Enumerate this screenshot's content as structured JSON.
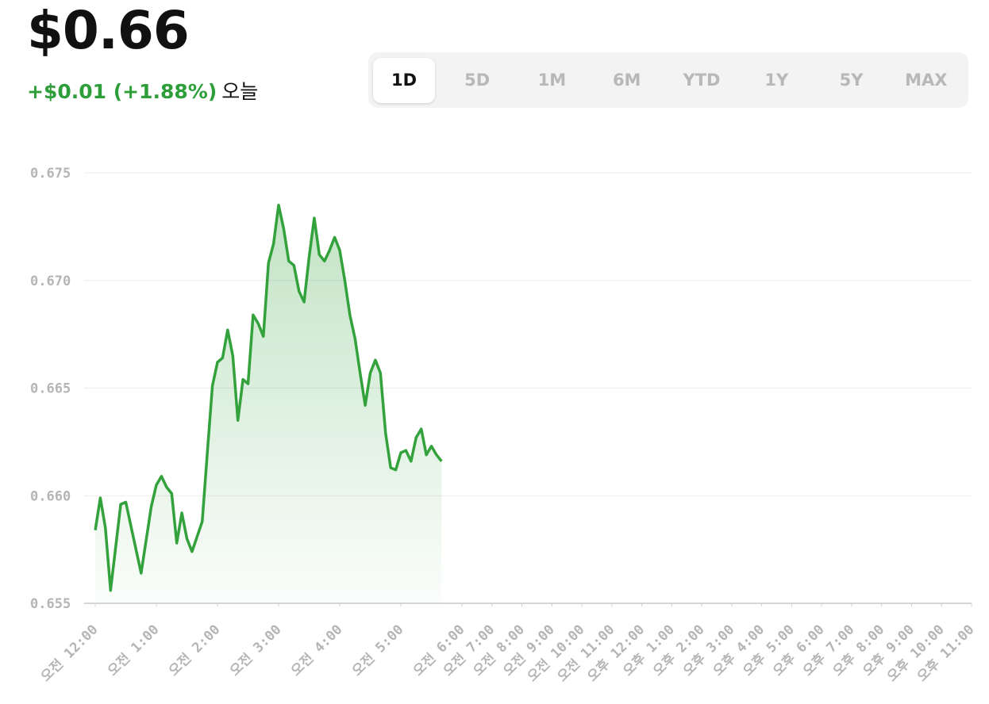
{
  "header": {
    "price": "$0.66",
    "change": "+$0.01 (+1.88%)",
    "period": "오늘"
  },
  "ranges": [
    "1D",
    "5D",
    "1M",
    "6M",
    "YTD",
    "1Y",
    "5Y",
    "MAX"
  ],
  "chart_data": {
    "type": "line",
    "color": "#33a23c",
    "grid": true,
    "x": [
      0,
      5,
      10,
      15,
      20,
      25,
      30,
      35,
      45,
      55,
      60,
      65,
      70,
      75,
      80,
      85,
      90,
      95,
      105,
      110,
      115,
      120,
      125,
      130,
      135,
      140,
      145,
      150,
      155,
      160,
      165,
      170,
      175,
      180,
      185,
      190,
      195,
      200,
      205,
      210,
      215,
      220,
      225,
      230,
      235,
      240,
      245,
      250,
      255,
      260,
      265,
      270,
      275,
      280,
      285,
      290,
      295,
      300,
      305,
      310,
      315,
      320,
      325,
      330,
      335,
      340
    ],
    "values": [
      0.6584,
      0.6599,
      0.6585,
      0.6556,
      0.6576,
      0.6596,
      0.6597,
      0.6586,
      0.6564,
      0.6595,
      0.6605,
      0.6609,
      0.6604,
      0.6601,
      0.6578,
      0.6592,
      0.658,
      0.6574,
      0.6588,
      0.662,
      0.6651,
      0.6662,
      0.6664,
      0.6677,
      0.6665,
      0.6635,
      0.6654,
      0.6652,
      0.6684,
      0.668,
      0.6674,
      0.6708,
      0.6717,
      0.6735,
      0.6724,
      0.6709,
      0.6707,
      0.6695,
      0.669,
      0.6711,
      0.6729,
      0.6712,
      0.6709,
      0.6714,
      0.672,
      0.6714,
      0.67,
      0.6684,
      0.6673,
      0.6657,
      0.6642,
      0.6657,
      0.6663,
      0.6657,
      0.6629,
      0.6613,
      0.6612,
      0.662,
      0.6621,
      0.6616,
      0.6627,
      0.6631,
      0.6619,
      0.6623,
      0.6619,
      0.6616
    ],
    "ylim": [
      0.655,
      0.675
    ],
    "yticks": [
      0.655,
      {
        "value": 0.66,
        "label": "0.660"
      },
      0.665,
      {
        "value": 0.67,
        "label": "0.670"
      },
      0.675
    ],
    "xlim": [
      0,
      1380
    ],
    "xticks": [
      {
        "value": 0,
        "label": "오전 12:00"
      },
      {
        "value": 60,
        "label": "오전 1:00"
      },
      {
        "value": 120,
        "label": "오전 2:00"
      },
      {
        "value": 180,
        "label": "오전 3:00"
      },
      {
        "value": 240,
        "label": "오전 4:00"
      },
      {
        "value": 300,
        "label": "오전 5:00"
      },
      {
        "value": 360,
        "label": "오전 6:00"
      },
      {
        "value": 420,
        "label": "오전 7:00"
      },
      {
        "value": 480,
        "label": "오전 8:00"
      },
      {
        "value": 540,
        "label": "오전 9:00"
      },
      {
        "value": 600,
        "label": "오전 10:00"
      },
      {
        "value": 660,
        "label": "오전 11:00"
      },
      {
        "value": 720,
        "label": "오후 12:00"
      },
      {
        "value": 780,
        "label": "오후 1:00"
      },
      {
        "value": 840,
        "label": "오후 2:00"
      },
      {
        "value": 900,
        "label": "오후 3:00"
      },
      {
        "value": 960,
        "label": "오후 4:00"
      },
      {
        "value": 1020,
        "label": "오후 5:00"
      },
      {
        "value": 1080,
        "label": "오후 6:00"
      },
      {
        "value": 1140,
        "label": "오후 7:00"
      },
      {
        "value": 1200,
        "label": "오후 8:00"
      },
      {
        "value": 1260,
        "label": "오후 9:00"
      },
      {
        "value": 1320,
        "label": "오후 10:00"
      },
      {
        "value": 1380,
        "label": "오후 11:00"
      }
    ]
  }
}
